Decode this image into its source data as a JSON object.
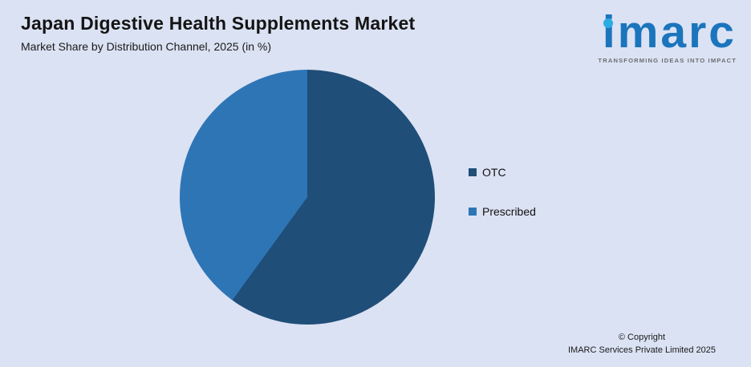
{
  "header": {
    "title": "Japan Digestive Health Supplements Market",
    "subtitle": "Market Share by Distribution Channel, 2025 (in %)"
  },
  "logo": {
    "text": "imarc",
    "tagline": "TRANSFORMING IDEAS INTO IMPACT",
    "brand_color": "#1b75bc",
    "dot_color": "#2aace2"
  },
  "footer": {
    "line1": "© Copyright",
    "line2": "IMARC Services Private Limited 2025"
  },
  "chart_data": {
    "type": "pie",
    "title": "Japan Digestive Health Supplements Market",
    "subtitle": "Market Share by Distribution Channel, 2025 (in %)",
    "labels": [
      "OTC",
      "Prescribed"
    ],
    "values": [
      60,
      40
    ],
    "colors": [
      "#1f4e79",
      "#2e75b6"
    ],
    "start_angle_deg": 0,
    "direction": "clockwise",
    "legend_position": "right",
    "background_color": "#dbe2f3",
    "data_labels_shown": false
  }
}
